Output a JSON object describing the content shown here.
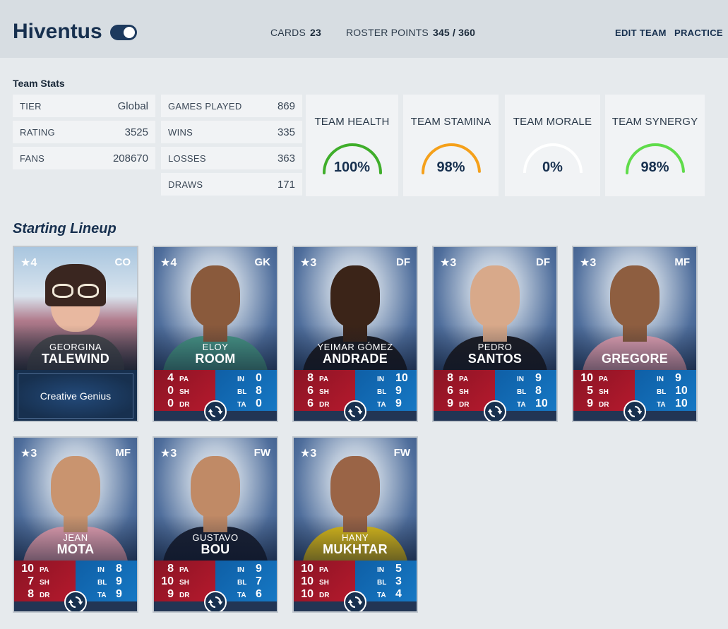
{
  "header": {
    "team_name": "Hiventus",
    "cards_label": "CARDS",
    "cards_value": "23",
    "roster_label": "ROSTER POINTS",
    "roster_value": "345 / 360",
    "edit_team": "EDIT TEAM",
    "practice": "PRACTICE",
    "toggle_on": true
  },
  "team_stats": {
    "title": "Team Stats",
    "col1": [
      {
        "label": "TIER",
        "value": "Global"
      },
      {
        "label": "RATING",
        "value": "3525"
      },
      {
        "label": "FANS",
        "value": "208670"
      }
    ],
    "col2": [
      {
        "label": "GAMES PLAYED",
        "value": "869"
      },
      {
        "label": "WINS",
        "value": "335"
      },
      {
        "label": "LOSSES",
        "value": "363"
      },
      {
        "label": "DRAWS",
        "value": "171"
      }
    ],
    "gauges": [
      {
        "label": "TEAM HEALTH",
        "value": "100%",
        "fraction": 1.0,
        "color": "#3fae2a"
      },
      {
        "label": "TEAM STAMINA",
        "value": "98%",
        "fraction": 0.98,
        "color": "#f5a01a"
      },
      {
        "label": "TEAM MORALE",
        "value": "0%",
        "fraction": 0.0,
        "color": "#ffffff"
      },
      {
        "label": "TEAM SYNERGY",
        "value": "98%",
        "fraction": 0.98,
        "color": "#5fdc4a"
      }
    ]
  },
  "lineup": {
    "title": "Starting Lineup",
    "coach": {
      "rating": "4",
      "position": "CO",
      "first": "GEORGINA",
      "last": "TALEWIND",
      "ability": "Creative Genius"
    },
    "players": [
      {
        "rating": "4",
        "position": "GK",
        "first": "ELOY",
        "last": "ROOM",
        "pa": "4",
        "sh": "0",
        "dr": "0",
        "in": "0",
        "bl": "8",
        "ta": "0",
        "skin": "#8a5a3c",
        "shirt": "#4a9a8a"
      },
      {
        "rating": "3",
        "position": "DF",
        "first": "YEIMAR GÓMEZ",
        "last": "ANDRADE",
        "pa": "8",
        "sh": "6",
        "dr": "6",
        "in": "10",
        "bl": "9",
        "ta": "9",
        "skin": "#3b2418",
        "shirt": "#1c1c22"
      },
      {
        "rating": "3",
        "position": "DF",
        "first": "PEDRO",
        "last": "SANTOS",
        "pa": "8",
        "sh": "6",
        "dr": "9",
        "in": "9",
        "bl": "8",
        "ta": "10",
        "skin": "#d8a98a",
        "shirt": "#1e1e24"
      },
      {
        "rating": "3",
        "position": "MF",
        "first": "",
        "last": "GREGORE",
        "pa": "10",
        "sh": "5",
        "dr": "9",
        "in": "9",
        "bl": "10",
        "ta": "10",
        "skin": "#8e5e40",
        "shirt": "#e9a6b8"
      },
      {
        "rating": "3",
        "position": "MF",
        "first": "JEAN",
        "last": "MOTA",
        "pa": "10",
        "sh": "7",
        "dr": "8",
        "in": "8",
        "bl": "9",
        "ta": "9",
        "skin": "#c9946f",
        "shirt": "#eba5b6"
      },
      {
        "rating": "3",
        "position": "FW",
        "first": "GUSTAVO",
        "last": "BOU",
        "pa": "8",
        "sh": "10",
        "dr": "9",
        "in": "9",
        "bl": "7",
        "ta": "6",
        "skin": "#c08a66",
        "shirt": "#1b2235"
      },
      {
        "rating": "3",
        "position": "FW",
        "first": "HANY",
        "last": "MUKHTAR",
        "pa": "10",
        "sh": "10",
        "dr": "10",
        "in": "5",
        "bl": "3",
        "ta": "4",
        "skin": "#9a6446",
        "shirt": "#e3c21a"
      }
    ]
  },
  "icons": {
    "star": "star-icon",
    "swap": "swap-icon",
    "toggle": "toggle-icon"
  }
}
